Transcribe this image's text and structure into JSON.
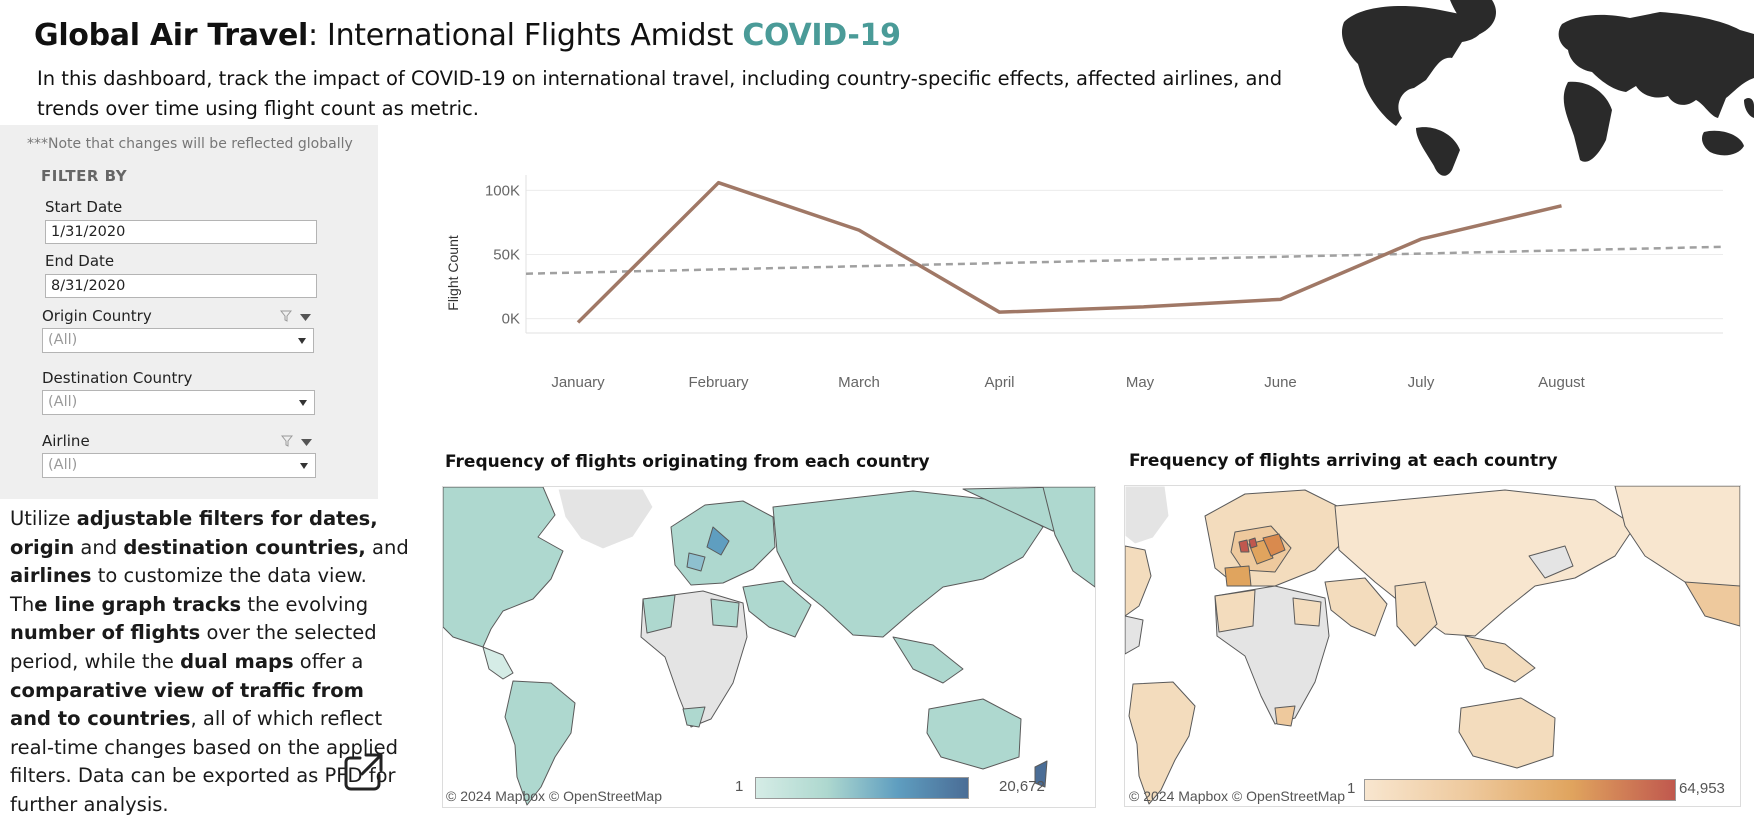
{
  "header": {
    "title_bold": "Global Air Travel",
    "title_mid": ": International Flights Amidst ",
    "title_accent": "COVID-19",
    "subtitle": "In this dashboard, track the impact of COVID-19 on international travel, including country-specific effects, affected airlines, and trends over time using flight count as metric."
  },
  "filters": {
    "note": "***Note that changes will be reflected globally",
    "heading": "FILTER BY",
    "start_date": {
      "label": "Start Date",
      "value": "1/31/2020"
    },
    "end_date": {
      "label": "End Date",
      "value": "8/31/2020"
    },
    "origin_country": {
      "label": "Origin Country",
      "value": "(All)"
    },
    "destination_country": {
      "label": "Destination Country",
      "value": "(All)"
    },
    "airline": {
      "label": "Airline",
      "value": "(All)"
    }
  },
  "description": {
    "p1": "Utilize ",
    "b1": "adjustable filters for dates, origin",
    "p2": " and ",
    "b2": "destination countries,",
    "p3": " and ",
    "b3": "airlines",
    "p4": " to customize the data view. Th",
    "b4": "e line graph tracks",
    "p5": " the evolving ",
    "b5": "number of flights",
    "p6": " over the selected period, while the ",
    "b6": "dual maps",
    "p7": " offer a ",
    "b7": "comparative view of traffic from and to countries",
    "p8": ", all of which reflect real-time changes based on the applied filters. Data can be exported as PFD for further analysis."
  },
  "chart_data": {
    "type": "line",
    "x": [
      "January",
      "February",
      "March",
      "April",
      "May",
      "June",
      "July",
      "August"
    ],
    "series": [
      {
        "values": [
          -3000,
          106000,
          69000,
          5000,
          9000,
          15000,
          62000,
          88000
        ],
        "color": "#a07866"
      }
    ],
    "trend": {
      "start": 35000,
      "end": 56000,
      "color": "#a0a0a0"
    },
    "ylabel": "Flight Count",
    "yticks": [
      0,
      50000,
      100000
    ],
    "ytick_labels": [
      "0K",
      "50K",
      "100K"
    ],
    "ylim": [
      -5000,
      112000
    ],
    "grid": true
  },
  "maps": {
    "origin": {
      "title": "Frequency of flights originating from each country",
      "legend_min": "1",
      "legend_max": "20,672",
      "credit": "© 2024 Mapbox  © OpenStreetMap",
      "colors": [
        "#d5ece6",
        "#aed8cf",
        "#5f9ec0",
        "#4a6d96"
      ]
    },
    "destination": {
      "title": "Frequency of flights arriving at each country",
      "legend_min": "1",
      "legend_max": "64,953",
      "credit": "© 2024 Mapbox  © OpenStreetMap",
      "colors": [
        "#f8e6cf",
        "#eec99d",
        "#e0a45e",
        "#c0584e"
      ]
    }
  },
  "icons": {
    "filter": "filter-icon",
    "dropdown": "chevron-down-icon",
    "export": "export-icon"
  }
}
